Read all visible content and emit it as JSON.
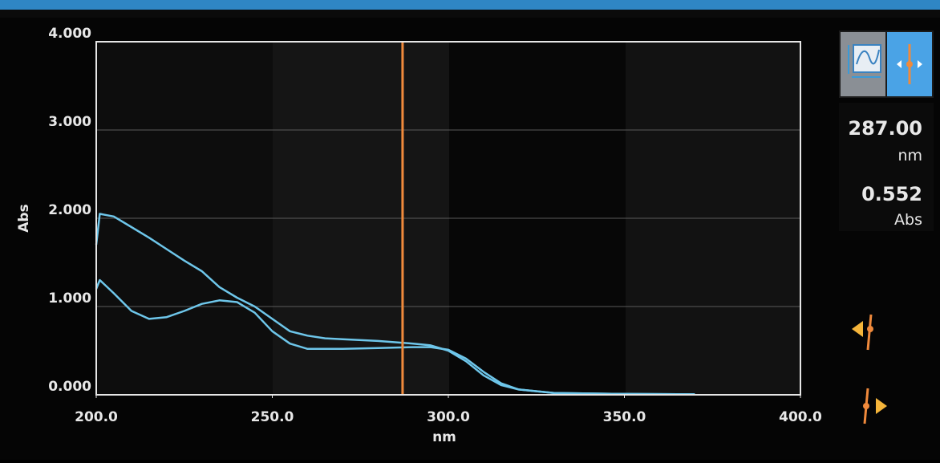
{
  "chart_data": {
    "type": "line",
    "y_label": "Abs",
    "x_label": "nm",
    "x": [
      200,
      201,
      205,
      210,
      215,
      220,
      225,
      230,
      235,
      240,
      245,
      250,
      255,
      260,
      265,
      270,
      280,
      290,
      295,
      300,
      305,
      310,
      315,
      320,
      330,
      350,
      370
    ],
    "series": [
      {
        "color": "#6ec6ea",
        "values": [
          1.7,
          2.05,
          2.02,
          1.9,
          1.78,
          1.65,
          1.52,
          1.4,
          1.22,
          1.1,
          1.0,
          0.86,
          0.72,
          0.67,
          0.64,
          0.63,
          0.61,
          0.58,
          0.56,
          0.5,
          0.38,
          0.22,
          0.11,
          0.06,
          0.02,
          0.01,
          0.005
        ]
      },
      {
        "color": "#6ec6ea",
        "values": [
          1.2,
          1.3,
          1.15,
          0.95,
          0.86,
          0.88,
          0.95,
          1.03,
          1.07,
          1.05,
          0.93,
          0.72,
          0.58,
          0.52,
          0.52,
          0.52,
          0.53,
          0.54,
          0.54,
          0.51,
          0.41,
          0.26,
          0.13,
          0.06,
          0.02,
          0.01,
          0.005
        ]
      }
    ],
    "xlim": [
      200,
      400
    ],
    "ylim": [
      0,
      4
    ],
    "xticks": [
      {
        "value": 200,
        "label": "200.0"
      },
      {
        "value": 250,
        "label": "250.0"
      },
      {
        "value": 300,
        "label": "300.0"
      },
      {
        "value": 350,
        "label": "350.0"
      },
      {
        "value": 400,
        "label": "400.0"
      }
    ],
    "yticks": [
      {
        "value": 0,
        "label": "0.000"
      },
      {
        "value": 1,
        "label": "1.000"
      },
      {
        "value": 2,
        "label": "2.000"
      },
      {
        "value": 3,
        "label": "3.000"
      },
      {
        "value": 4,
        "label": "4.000"
      }
    ],
    "grid": true,
    "cursor_x": 287,
    "cursor_color": "#f08a3c"
  },
  "readout": {
    "wavelength": "287.00",
    "wavelength_unit": "nm",
    "absorbance": "0.552",
    "absorbance_unit": "Abs"
  }
}
